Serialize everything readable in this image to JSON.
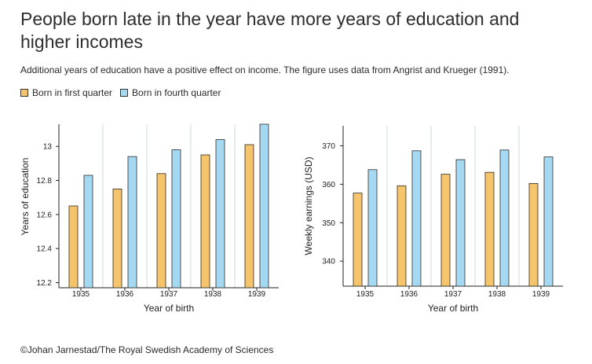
{
  "title": "People born late in the year have more years of education and higher incomes",
  "subtitle": "Additional years of education have a positive effect on income. The figure uses data from Angrist and Krueger (1991).",
  "legend": [
    {
      "label": "Born in first quarter",
      "color": "#f6c46a"
    },
    {
      "label": "Born in fourth quarter",
      "color": "#a5d9f2"
    }
  ],
  "credit": "©Johan Jarnestad/The Royal Swedish Academy of Sciences",
  "chart_data": [
    {
      "type": "bar",
      "categories": [
        "1935",
        "1936",
        "1937",
        "1938",
        "1939"
      ],
      "series": [
        {
          "name": "Born in first quarter",
          "values": [
            12.65,
            12.75,
            12.84,
            12.95,
            13.01
          ]
        },
        {
          "name": "Born in fourth quarter",
          "values": [
            12.83,
            12.94,
            12.98,
            13.04,
            13.13
          ]
        }
      ],
      "ylabel": "Years of education",
      "xlabel": "Year of birth",
      "ylim": [
        12.17,
        13.13
      ],
      "yticks": [
        12.2,
        12.4,
        12.6,
        12.8,
        13
      ],
      "ytick_labels": [
        "12.2",
        "12.4",
        "12.6",
        "12.8",
        "13"
      ]
    },
    {
      "type": "bar",
      "categories": [
        "1935",
        "1936",
        "1937",
        "1938",
        "1939"
      ],
      "series": [
        {
          "name": "Born in first quarter",
          "values": [
            357.7,
            359.6,
            362.6,
            363.1,
            360.2
          ]
        },
        {
          "name": "Born in fourth quarter",
          "values": [
            363.8,
            368.7,
            366.4,
            368.9,
            367.1
          ]
        }
      ],
      "ylabel": "Weekly earnings (USD)",
      "xlabel": "Year of birth",
      "ylim": [
        333.5,
        375.2
      ],
      "yticks": [
        340,
        350,
        360,
        370
      ],
      "ytick_labels": [
        "340",
        "350",
        "360",
        "370"
      ]
    }
  ]
}
